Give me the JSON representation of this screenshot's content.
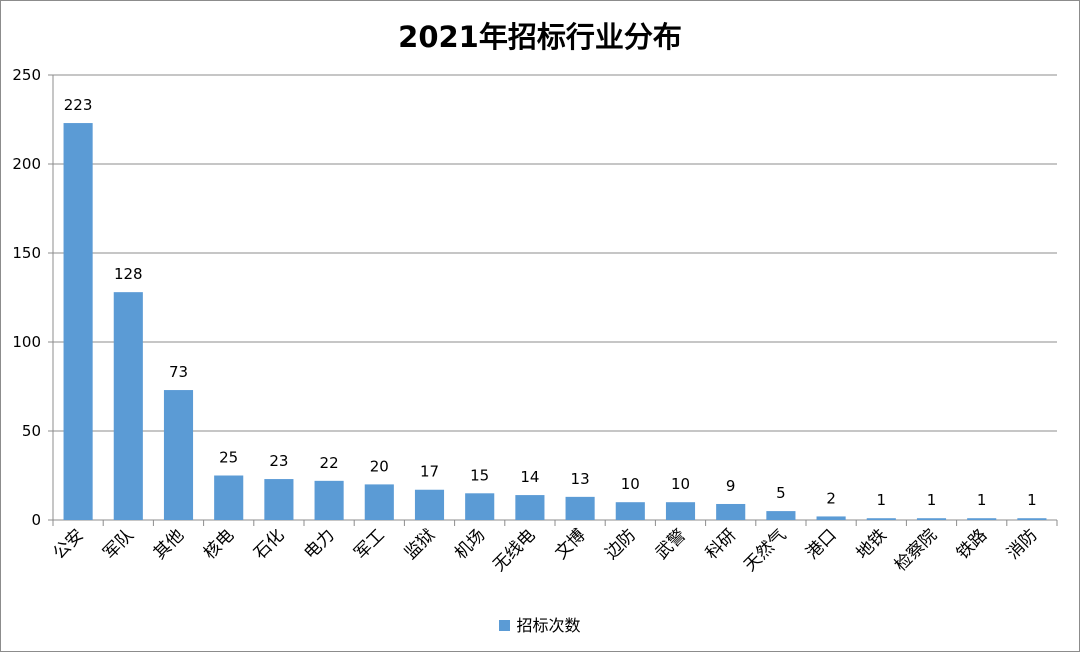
{
  "chart_data": {
    "type": "bar",
    "title": "2021年招标行业分布",
    "categories": [
      "公安",
      "军队",
      "其他",
      "核电",
      "石化",
      "电力",
      "军工",
      "监狱",
      "机场",
      "无线电",
      "文博",
      "边防",
      "武警",
      "科研",
      "天然气",
      "港口",
      "地铁",
      "检察院",
      "铁路",
      "消防"
    ],
    "series": [
      {
        "name": "招标次数",
        "values": [
          223,
          128,
          73,
          25,
          23,
          22,
          20,
          17,
          15,
          14,
          13,
          10,
          10,
          9,
          5,
          2,
          1,
          1,
          1,
          1
        ]
      }
    ],
    "ylim": [
      0,
      250
    ],
    "yticks": [
      0,
      50,
      100,
      150,
      200,
      250
    ],
    "xlabel": "",
    "ylabel": "",
    "grid": true,
    "legend_position": "bottom",
    "data_labels": true,
    "colors": {
      "bar": "#5b9bd5",
      "grid": "#8c8c8c",
      "axis": "#8c8c8c"
    }
  }
}
